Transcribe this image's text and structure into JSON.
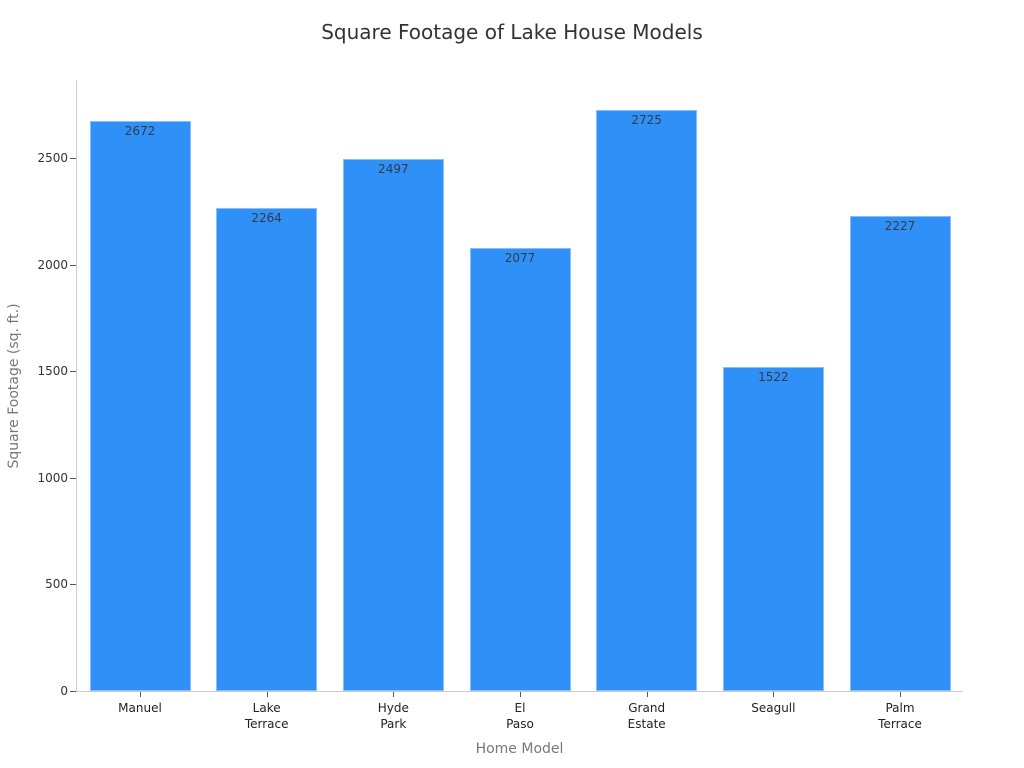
{
  "chart_data": {
    "type": "bar",
    "title": "Square Footage of Lake House Models",
    "xlabel": "Home Model",
    "ylabel": "Square Footage (sq. ft.)",
    "categories": [
      "Manuel",
      "Lake Terrace",
      "Hyde Park",
      "El Paso",
      "Grand Estate",
      "Seagull",
      "Palm Terrace"
    ],
    "category_labels_wrapped": [
      "Manuel",
      "Lake\nTerrace",
      "Hyde\nPark",
      "El\nPaso",
      "Grand\nEstate",
      "Seagull",
      "Palm\nTerrace"
    ],
    "values": [
      2672,
      2264,
      2497,
      2077,
      2725,
      1522,
      2227
    ],
    "yticks": [
      0,
      500,
      1000,
      1500,
      2000,
      2500
    ],
    "ylim": [
      0,
      2870
    ],
    "grid": false,
    "legend": null,
    "data_labels": true,
    "bar_color": "#2f91f7"
  }
}
